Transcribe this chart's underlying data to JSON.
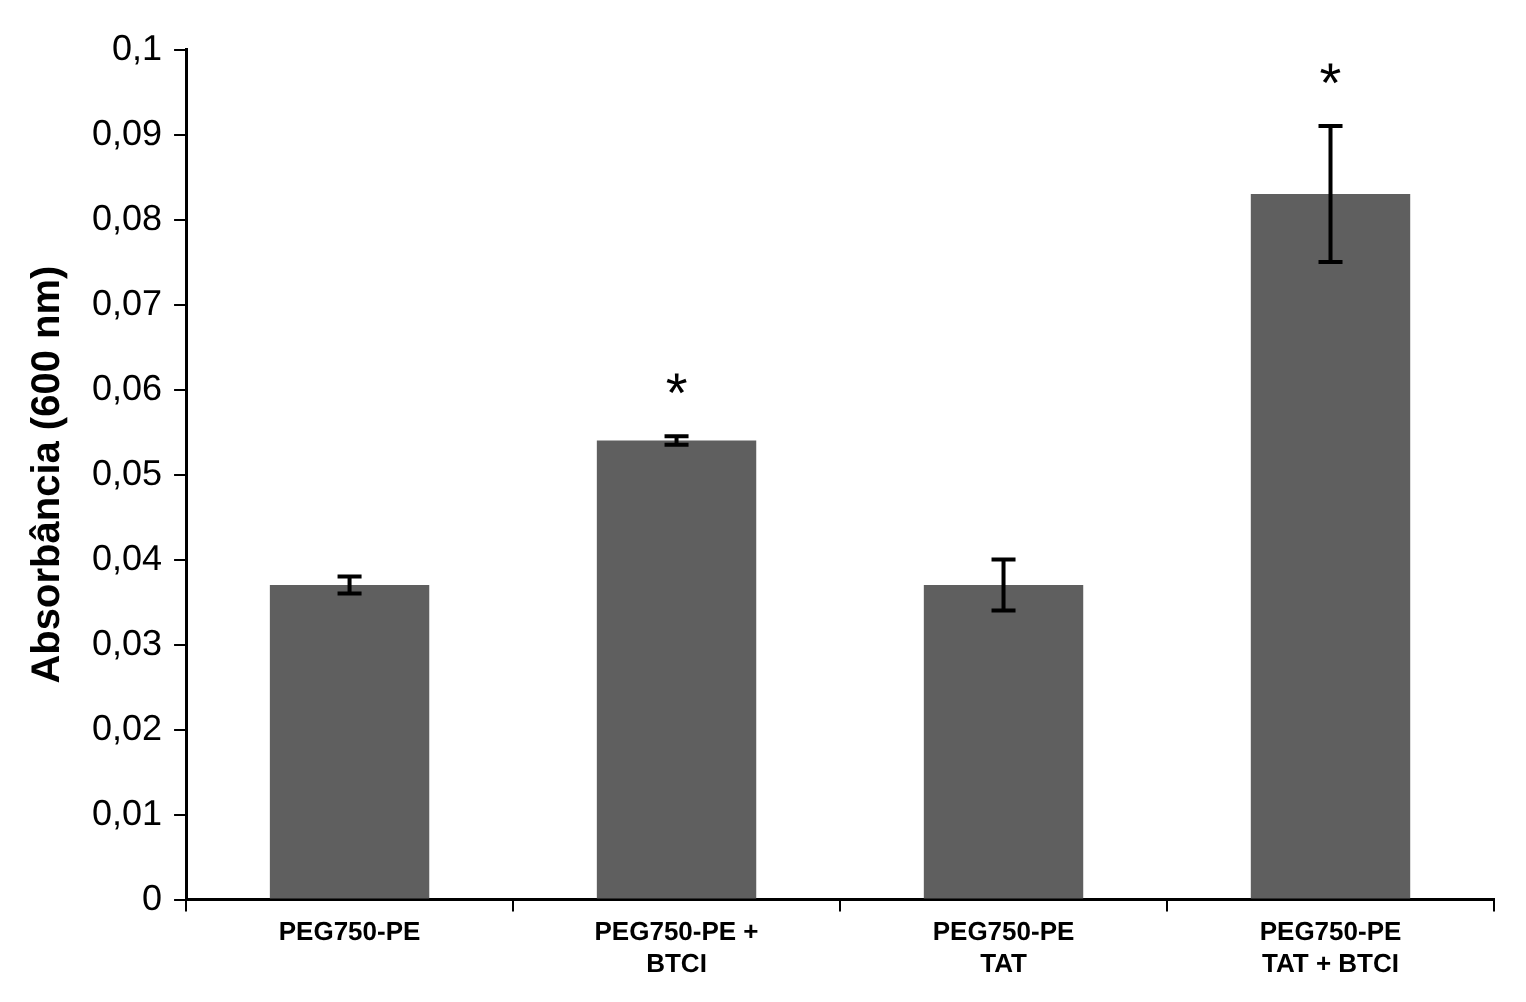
{
  "chart_data": {
    "type": "bar",
    "ylabel": "Absorbância (600 nm)",
    "categories": [
      "PEG750-PE",
      "PEG750-PE + BTCI",
      "PEG750-PE TAT",
      "PEG750-PE TAT + BTCI"
    ],
    "values": [
      0.037,
      0.054,
      0.037,
      0.083
    ],
    "errors": [
      0.001,
      0.0005,
      0.003,
      0.008
    ],
    "color": "#5f5f5f",
    "ylim": [
      0,
      0.1
    ],
    "yticks": [
      {
        "value": 0,
        "label": "0"
      },
      {
        "value": 0.01,
        "label": "0,01"
      },
      {
        "value": 0.02,
        "label": "0,02"
      },
      {
        "value": 0.03,
        "label": "0,03"
      },
      {
        "value": 0.04,
        "label": "0,04"
      },
      {
        "value": 0.05,
        "label": "0,05"
      },
      {
        "value": 0.06,
        "label": "0,06"
      },
      {
        "value": 0.07,
        "label": "0,07"
      },
      {
        "value": 0.08,
        "label": "0,08"
      },
      {
        "value": 0.09,
        "label": "0,09"
      },
      {
        "value": 0.1,
        "label": "0,1"
      }
    ],
    "annotations": [
      {
        "text": "*",
        "x": "PEG750-PE + BTCI",
        "y": 0.054
      },
      {
        "text": "*",
        "x": "PEG750-PE TAT + BTCI",
        "y": 0.083
      }
    ],
    "grid": false,
    "legend": false
  }
}
